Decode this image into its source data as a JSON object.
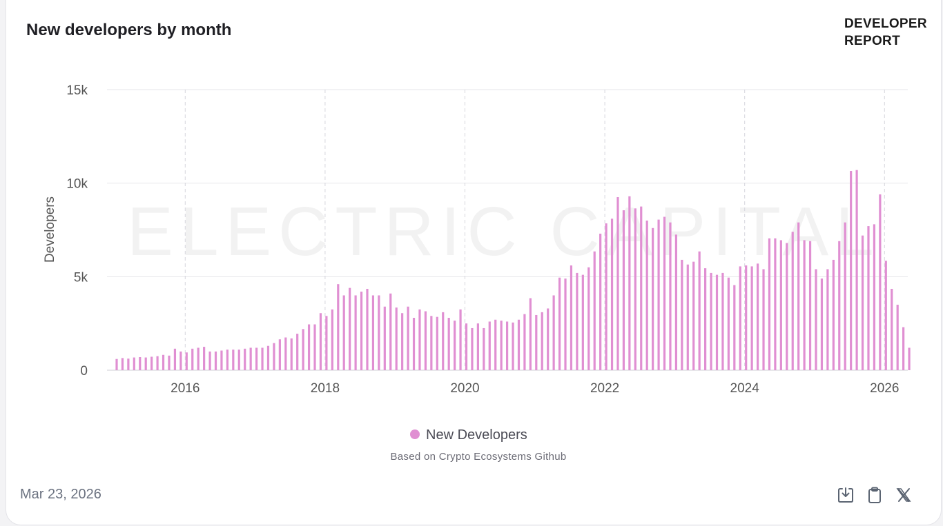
{
  "header": {
    "title": "New developers by month",
    "brand_line1": "DEVELOPER",
    "brand_line2": "REPORT"
  },
  "watermark": "ELECTRIC CAPITAL",
  "footer": {
    "date": "Mar 23, 2026"
  },
  "icons": [
    "download-icon",
    "clipboard-icon",
    "x-share-icon"
  ],
  "colors": {
    "bar": "#e08fd2",
    "grid": "#e6e6ea",
    "axis_text": "#555555"
  },
  "chart_data": {
    "type": "bar",
    "title": "New developers by month",
    "xlabel": "",
    "ylabel": "Developers",
    "ylim": [
      0,
      15000
    ],
    "yticks": [
      0,
      5000,
      10000,
      15000
    ],
    "ytick_labels": [
      "0",
      "5k",
      "10k",
      "15k"
    ],
    "xticks": [
      "2016",
      "2018",
      "2020",
      "2022",
      "2024",
      "2026"
    ],
    "legend": "New Developers",
    "source_note": "Based on Crypto Ecosystems Github",
    "start_month": "2015-01",
    "series": [
      {
        "name": "New Developers",
        "values": [
          600,
          650,
          620,
          680,
          700,
          680,
          720,
          750,
          820,
          780,
          1150,
          1000,
          950,
          1150,
          1200,
          1250,
          1000,
          1000,
          1050,
          1100,
          1100,
          1100,
          1150,
          1200,
          1200,
          1200,
          1300,
          1450,
          1650,
          1750,
          1700,
          1950,
          2200,
          2450,
          2450,
          3050,
          2900,
          3250,
          4600,
          4000,
          4400,
          4000,
          4200,
          4350,
          4000,
          4000,
          3400,
          4100,
          3350,
          3050,
          3400,
          2800,
          3250,
          3150,
          2900,
          2850,
          3100,
          2800,
          2650,
          3250,
          2500,
          2250,
          2500,
          2250,
          2600,
          2700,
          2650,
          2600,
          2550,
          2700,
          3000,
          3850,
          2950,
          3100,
          3300,
          4000,
          4950,
          4900,
          5600,
          5200,
          5100,
          5500,
          6350,
          7300,
          7850,
          8100,
          9250,
          8550,
          9300,
          8650,
          8750,
          8000,
          7600,
          8050,
          8200,
          7900,
          7250,
          5900,
          5650,
          5800,
          6350,
          5450,
          5200,
          5100,
          5200,
          4950,
          4550,
          5550,
          5600,
          5550,
          5700,
          5400,
          7050,
          7050,
          6950,
          6800,
          7400,
          7900,
          6950,
          6900,
          5400,
          4900,
          5400,
          5900,
          6900,
          7900,
          10650,
          10700,
          7200,
          7700,
          7800,
          9400,
          5850,
          4350,
          3500,
          2300,
          1200
        ]
      }
    ]
  }
}
